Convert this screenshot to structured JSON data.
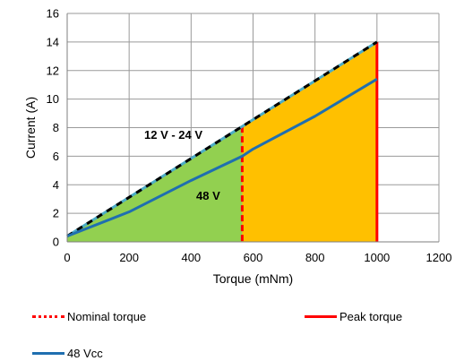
{
  "chart_data": {
    "type": "line",
    "xlabel": "Torque (mNm)",
    "ylabel": "Current (A)",
    "xlim": [
      0,
      1200
    ],
    "ylim": [
      0,
      16
    ],
    "xticks": [
      0,
      200,
      400,
      600,
      800,
      1000,
      1200
    ],
    "yticks": [
      0,
      2,
      4,
      6,
      8,
      10,
      12,
      14,
      16
    ],
    "grid": true,
    "nominal_torque": 565,
    "peak_torque": 1000,
    "series": [
      {
        "name": "48 Vcc",
        "color": "#1f6fb0",
        "points": [
          [
            0,
            0.4
          ],
          [
            200,
            2.1
          ],
          [
            400,
            4.3
          ],
          [
            565,
            6.0
          ],
          [
            600,
            6.5
          ],
          [
            800,
            8.8
          ],
          [
            1000,
            11.4
          ]
        ]
      },
      {
        "name": "",
        "color": "#000000",
        "points": [
          [
            0,
            0.4
          ],
          [
            1000,
            14.0
          ]
        ]
      }
    ],
    "regions": [
      {
        "label": "48 V",
        "color": "#92d050"
      },
      {
        "label": "12 V - 24 V",
        "color": "#ffc000"
      }
    ],
    "legend": [
      {
        "label": "Nominal torque",
        "style": "dotted",
        "color": "#ff0000"
      },
      {
        "label": "Peak torque",
        "style": "solid",
        "color": "#ff0000"
      },
      {
        "label": "48 Vcc",
        "style": "solid",
        "color": "#1f6fb0"
      }
    ],
    "legend_position": "bottom"
  }
}
